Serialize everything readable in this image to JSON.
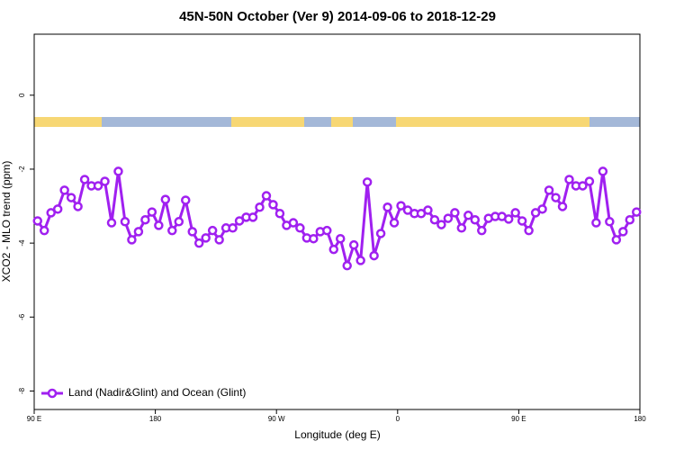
{
  "chart_data": {
    "type": "line",
    "title": "45N-50N October (Ver 9)   2014-09-06 to 2018-12-29",
    "xlabel": "Longitude (deg E)",
    "ylabel": "XCO2 - MLO trend (ppm)",
    "xlim": [
      90,
      540
    ],
    "ylim": [
      -8.5,
      1.65
    ],
    "xticks": [
      {
        "value": 90,
        "label": "90 E"
      },
      180,
      {
        "value": 270,
        "label": "90 W"
      },
      {
        "value": 360,
        "label": "0"
      },
      {
        "value": 450,
        "label": "90 E"
      },
      {
        "value": 540,
        "label": "180"
      }
    ],
    "yticks": [
      0,
      -2,
      -4,
      -6,
      -8
    ],
    "legend": "bottom-left",
    "x": [
      92.5,
      97.5,
      102.5,
      107.5,
      112.5,
      117.5,
      122.5,
      127.5,
      132.5,
      137.5,
      142.5,
      147.5,
      152.5,
      157.5,
      162.5,
      167.5,
      172.5,
      177.5,
      182.5,
      187.5,
      192.5,
      197.5,
      202.5,
      207.5,
      212.5,
      217.5,
      222.5,
      227.5,
      232.5,
      237.5,
      242.5,
      247.5,
      252.5,
      257.5,
      262.5,
      267.5,
      272.5,
      277.5,
      282.5,
      287.5,
      292.5,
      297.5,
      302.5,
      307.5,
      312.5,
      317.5,
      322.5,
      327.5,
      332.5,
      337.5,
      342.5,
      347.5,
      352.5,
      357.5,
      362.5,
      367.5,
      372.5,
      377.5,
      382.5,
      387.5,
      392.5,
      397.5,
      402.5,
      407.5,
      412.5,
      417.5,
      422.5,
      427.5,
      432.5,
      437.5,
      442.5,
      447.5,
      452.5,
      457.5,
      462.5,
      467.5,
      472.5,
      477.5,
      482.5,
      487.5,
      492.5,
      497.5,
      502.5,
      507.5,
      512.5,
      517.5,
      522.5,
      527.5,
      532.5,
      537.5
    ],
    "series": [
      {
        "name": "Land (Nadir&Glint) and Ocean (Glint)",
        "color": "#a020f0",
        "values": [
          -3.4,
          -3.66,
          -3.18,
          -3.08,
          -2.57,
          -2.77,
          -3.01,
          -2.28,
          -2.45,
          -2.45,
          -2.33,
          -3.45,
          -2.06,
          -3.42,
          -3.91,
          -3.69,
          -3.37,
          -3.16,
          -3.52,
          -2.82,
          -3.66,
          -3.42,
          -2.84,
          -3.69,
          -4.0,
          -3.86,
          -3.66,
          -3.91,
          -3.59,
          -3.59,
          -3.4,
          -3.3,
          -3.3,
          -3.03,
          -2.72,
          -2.96,
          -3.2,
          -3.52,
          -3.45,
          -3.59,
          -3.86,
          -3.88,
          -3.69,
          -3.66,
          -4.17,
          -3.88,
          -4.61,
          -4.05,
          -4.47,
          -2.35,
          -4.34,
          -3.74,
          -3.03,
          -3.45,
          -2.99,
          -3.11,
          -3.2,
          -3.2,
          -3.11,
          -3.37,
          -3.5,
          -3.33,
          -3.18,
          -3.59,
          -3.25,
          -3.37,
          -3.66,
          -3.33,
          -3.28,
          -3.28,
          -3.35,
          -3.18,
          -3.4,
          -3.66,
          -3.18,
          -3.08,
          -2.57,
          -2.77,
          -3.01,
          -2.28,
          -2.45,
          -2.45,
          -2.33,
          -3.45,
          -2.06,
          -3.42,
          -3.91,
          -3.69,
          -3.37,
          -3.16
        ]
      }
    ]
  }
}
